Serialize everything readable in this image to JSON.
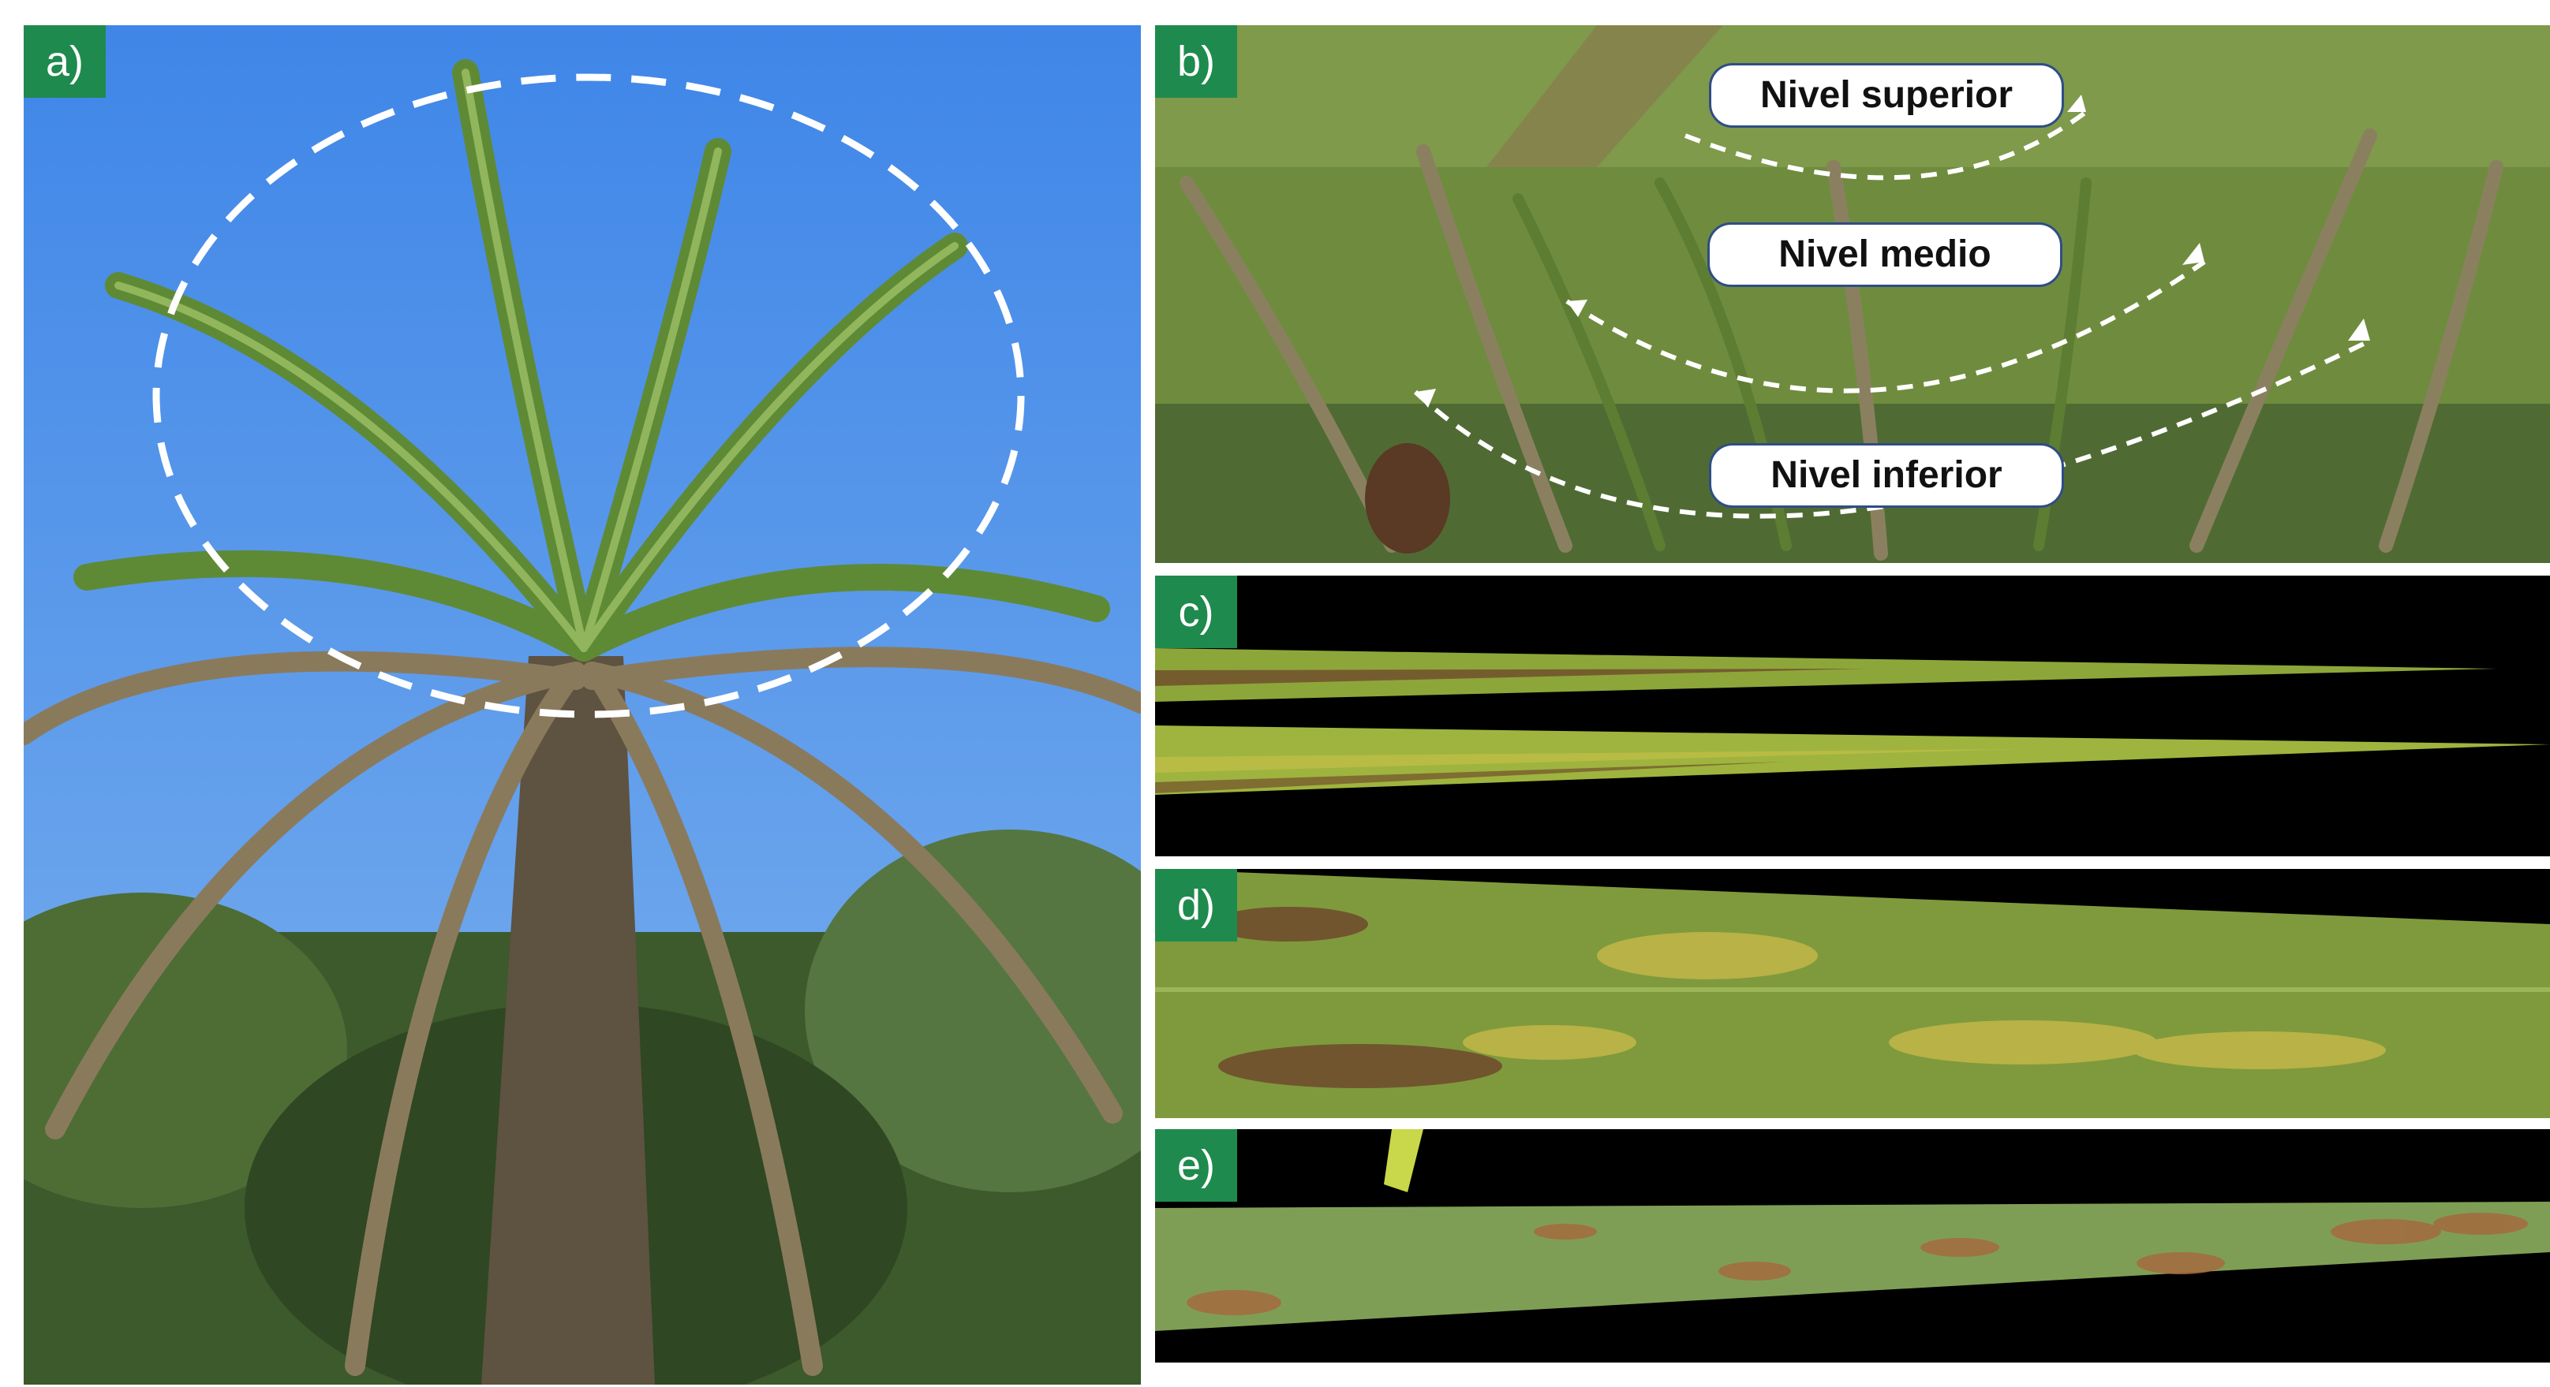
{
  "panels": {
    "a": {
      "tag": "a)",
      "description_icon": "palm-tree-photo"
    },
    "b": {
      "tag": "b)",
      "labels": {
        "top": "Nivel superior",
        "middle": "Nivel medio",
        "bottom": "Nivel inferior"
      }
    },
    "c": {
      "tag": "c)"
    },
    "d": {
      "tag": "d)"
    },
    "e": {
      "tag": "e)"
    }
  },
  "colors": {
    "tag_bg": "#1f8a4d",
    "sky": "#4a8fe6",
    "leaf_green": "#8fae3a",
    "lesion": "#6b3d2b",
    "pill_border": "#2f4d86"
  }
}
